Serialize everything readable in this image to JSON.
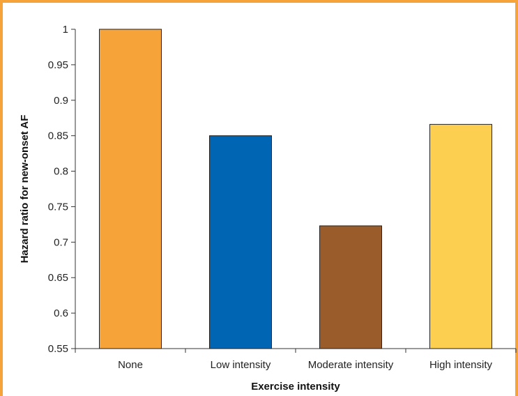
{
  "chart_data": {
    "type": "bar",
    "title": "",
    "xlabel": "Exercise intensity",
    "ylabel": "Hazard ratio for new-onset AF",
    "categories": [
      "None",
      "Low intensity",
      "Moderate intensity",
      "High intensity"
    ],
    "values": [
      1.0,
      0.85,
      0.723,
      0.866
    ],
    "colors": [
      "#F6A33A",
      "#0066B3",
      "#9A5C2A",
      "#FDCF50"
    ],
    "ylim": [
      0.55,
      1.0
    ],
    "yticks": [
      0.55,
      0.6,
      0.65,
      0.7,
      0.75,
      0.8,
      0.85,
      0.9,
      0.95,
      1
    ],
    "ytick_labels": [
      "0.55",
      "0.6",
      "0.65",
      "0.7",
      "0.75",
      "0.8",
      "0.85",
      "0.9",
      "0.95",
      "1"
    ],
    "grid": false,
    "legend": "none"
  },
  "colors": {
    "frame": "#F6A33A",
    "axis": "#333333"
  }
}
